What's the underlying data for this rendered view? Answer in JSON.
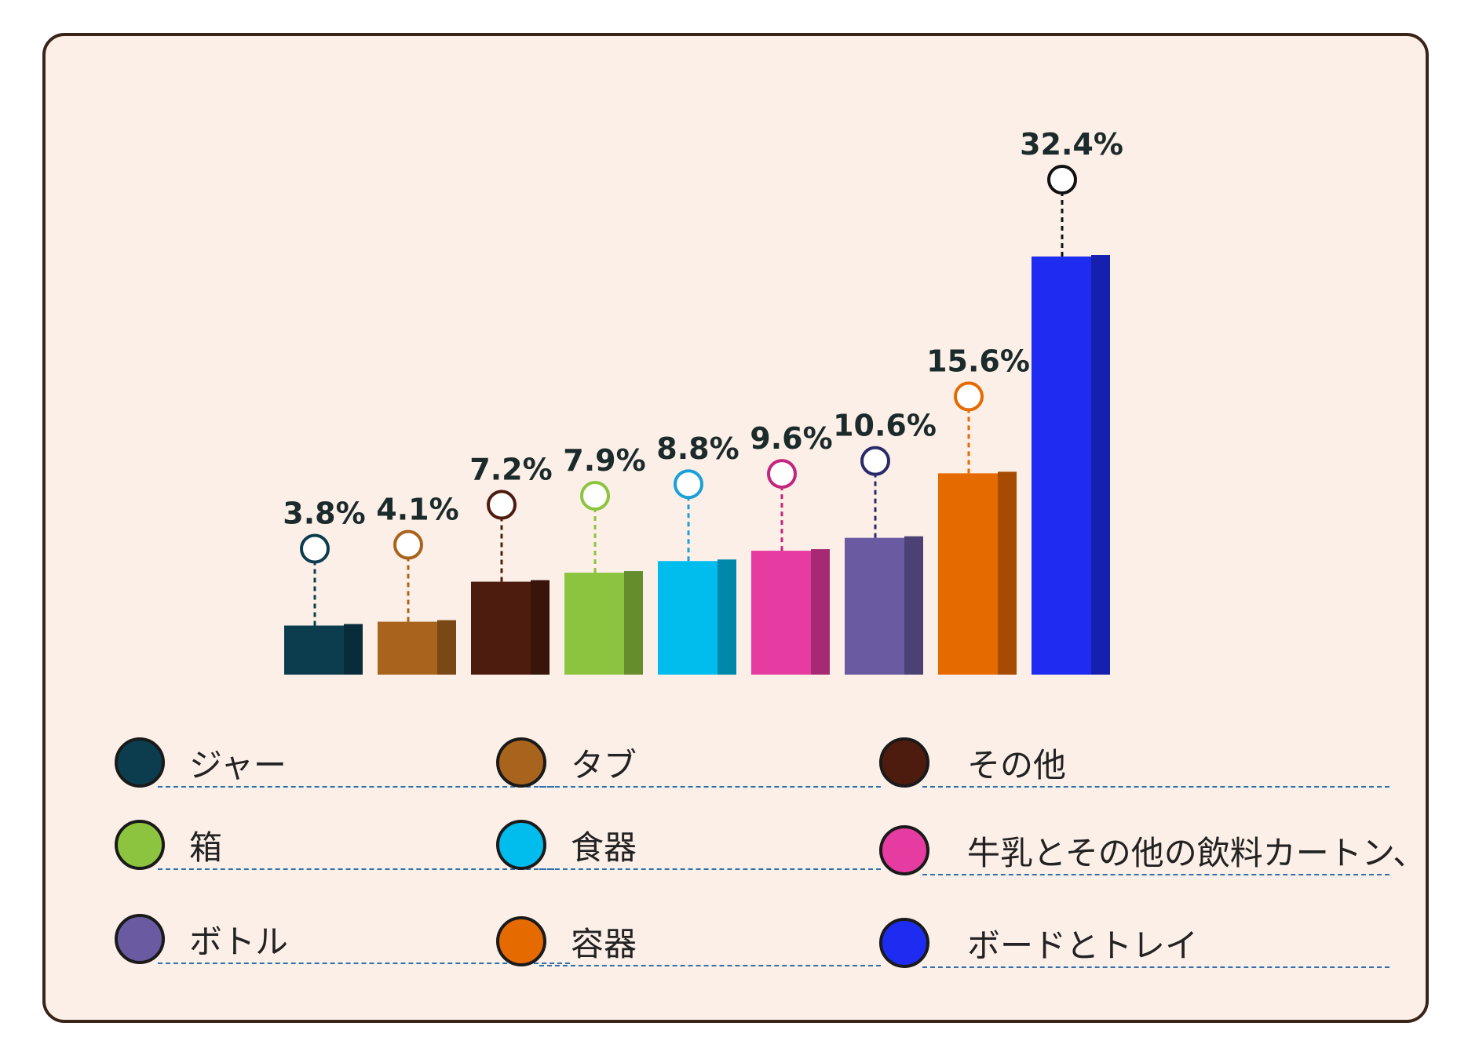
{
  "chart_data": {
    "type": "bar",
    "title": "",
    "xlabel": "",
    "ylabel": "",
    "ylim": [
      0,
      32.4
    ],
    "categories": [
      "ジャー",
      "タブ",
      "その他",
      "箱",
      "食器",
      "牛乳とその他の飲料カートン、",
      "ボトル",
      "容器",
      "ボードとトレイ"
    ],
    "values": [
      3.8,
      4.1,
      7.2,
      7.9,
      8.8,
      9.6,
      10.6,
      15.6,
      32.4
    ],
    "value_labels": [
      "3.8%",
      "4.1%",
      "7.2%",
      "7.9%",
      "8.8%",
      "9.6%",
      "10.6%",
      "15.6%",
      "32.4%"
    ],
    "colors": [
      "#0b3d4f",
      "#a8641c",
      "#4e1c0e",
      "#8cc43f",
      "#00bdee",
      "#e63ba0",
      "#6a5aa1",
      "#e56a00",
      "#1e2cf2"
    ],
    "marker_colors": [
      "#0b3d4f",
      "#a8641c",
      "#4e1c0e",
      "#8cc43f",
      "#1aa0d8",
      "#c2267d",
      "#2a2a6a",
      "#e56a00",
      "#111111"
    ],
    "legend_position": "bottom"
  },
  "legend": {
    "items": [
      {
        "label": "ジャー",
        "color": "#0b3d4f"
      },
      {
        "label": "タブ",
        "color": "#a8641c"
      },
      {
        "label": "その他",
        "color": "#4e1c0e"
      },
      {
        "label": "箱",
        "color": "#8cc43f"
      },
      {
        "label": "食器",
        "color": "#00bdee"
      },
      {
        "label": "牛乳とその他の飲料カートン、",
        "color": "#e63ba0"
      },
      {
        "label": "ボトル",
        "color": "#6a5aa1"
      },
      {
        "label": "容器",
        "color": "#e56a00"
      },
      {
        "label": "ボードとトレイ",
        "color": "#1e2cf2"
      }
    ]
  }
}
